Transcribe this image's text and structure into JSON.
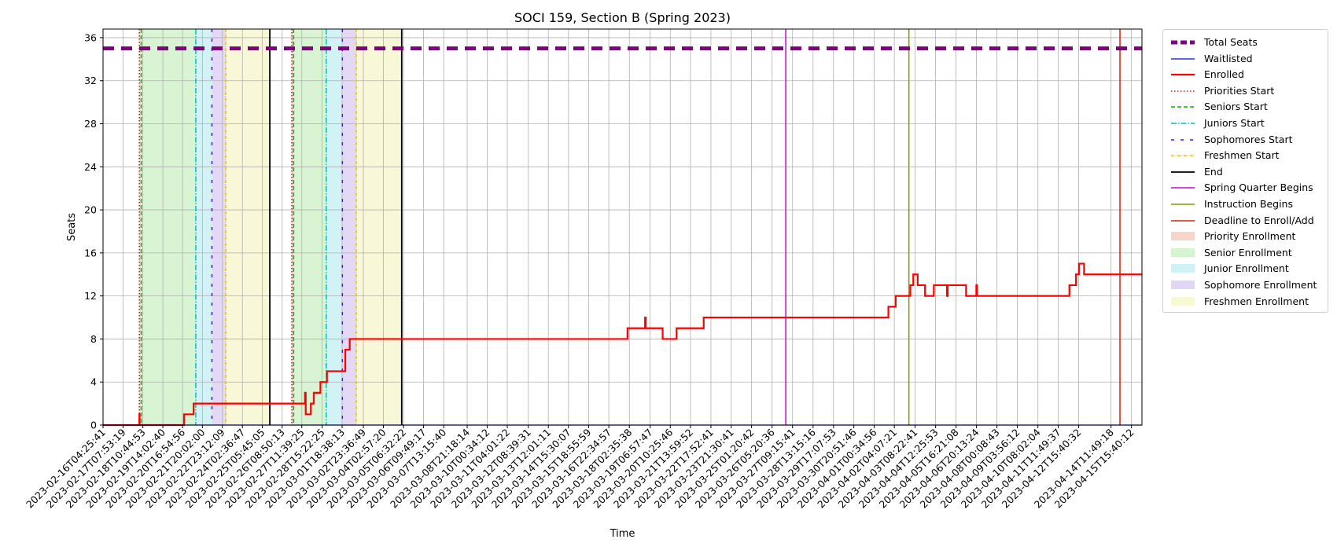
{
  "chart_data": {
    "type": "line",
    "title": "SOCI 159, Section B (Spring 2023)",
    "xlabel": "Time",
    "ylabel": "Seats",
    "ylim": [
      0,
      36.8
    ],
    "yticks": [
      0,
      4,
      8,
      12,
      16,
      20,
      24,
      28,
      32,
      36
    ],
    "grid": true,
    "legend_position": "outside-right",
    "x_range": [
      "2023-02-16T04:25:41",
      "2023-04-16T06:00:00"
    ],
    "x_tick_labels": [
      "2023-02-16T04:25:41",
      "2023-02-17T07:53:19",
      "2023-02-18T10:44:53",
      "2023-02-19T14:02:40",
      "2023-02-20T16:54:56",
      "2023-02-21T20:02:00",
      "2023-02-22T23:12:09",
      "2023-02-24T02:36:47",
      "2023-02-25T05:45:05",
      "2023-02-26T08:50:13",
      "2023-02-27T11:39:25",
      "2023-02-28T15:22:25",
      "2023-03-01T18:38:13",
      "2023-03-02T23:36:49",
      "2023-03-04T02:57:20",
      "2023-03-05T06:32:22",
      "2023-03-06T09:49:17",
      "2023-03-07T13:15:40",
      "2023-03-08T21:18:14",
      "2023-03-10T00:34:12",
      "2023-03-11T04:01:22",
      "2023-03-12T08:39:31",
      "2023-03-13T12:01:11",
      "2023-03-14T15:30:07",
      "2023-03-15T18:55:59",
      "2023-03-16T22:34:57",
      "2023-03-18T02:35:38",
      "2023-03-19T06:57:47",
      "2023-03-20T10:25:46",
      "2023-03-21T13:59:52",
      "2023-03-22T17:52:41",
      "2023-03-23T21:30:41",
      "2023-03-25T01:20:42",
      "2023-03-26T05:20:36",
      "2023-03-27T09:15:41",
      "2023-03-28T13:15:16",
      "2023-03-29T17:07:53",
      "2023-03-30T20:51:46",
      "2023-04-01T00:34:56",
      "2023-04-02T04:07:21",
      "2023-04-03T08:22:41",
      "2023-04-04T12:25:53",
      "2023-04-05T16:21:08",
      "2023-04-06T20:13:24",
      "2023-04-08T00:08:43",
      "2023-04-09T03:56:12",
      "2023-04-10T08:02:04",
      "2023-04-11T11:49:37",
      "2023-04-12T15:40:32",
      "2023-04-14T11:49:18",
      "2023-04-15T15:40:12"
    ],
    "colors": {
      "total": "#800080",
      "waitlisted": "#0000ff",
      "enrolled": "#ff0000",
      "priorities": "#ff0000",
      "seniors": "#00bb00",
      "juniors": "#00bfbf",
      "sophomores": "#6a00d8",
      "freshmen": "#e6c800",
      "end": "#000000",
      "quarter": "#d800d8",
      "instruction": "#7aa000",
      "deadline": "#d82000",
      "priority_fill": "#f4c7bb",
      "senior_fill": "#c9f0c0",
      "junior_fill": "#bdeef2",
      "sophomore_fill": "#d8c8f4",
      "freshmen_fill": "#f5f5c7"
    },
    "total_seats": 35,
    "enrollment_periods": [
      {
        "priority_start": "2023-02-18T06:00:00",
        "senior_start": "2023-02-18T08:30:00",
        "junior_start": "2023-02-21T11:00:00",
        "sophomore_start": "2023-02-22T09:00:00",
        "freshmen_start": "2023-02-23T04:00:00",
        "end": "2023-02-25T16:00:00"
      },
      {
        "priority_start": "2023-02-26T22:00:00",
        "senior_start": "2023-02-27T00:30:00",
        "junior_start": "2023-02-28T21:00:00",
        "sophomore_start": "2023-03-01T19:00:00",
        "freshmen_start": "2023-03-02T14:00:00",
        "end": "2023-03-05T04:00:00"
      }
    ],
    "events": [
      {
        "name": "Spring Quarter Begins",
        "x": "2023-03-27T00:00:00"
      },
      {
        "name": "Instruction Begins",
        "x": "2023-04-03T00:00:00"
      },
      {
        "name": "Deadline to Enroll/Add",
        "x": "2023-04-14T23:59:00"
      }
    ],
    "series": [
      {
        "name": "Enrolled",
        "points": [
          [
            "2023-02-16T04:25:41",
            0
          ],
          [
            "2023-02-18T06:00:00",
            0
          ],
          [
            "2023-02-18T06:00:00",
            1
          ],
          [
            "2023-02-18T06:20:00",
            1
          ],
          [
            "2023-02-18T06:20:00",
            0
          ],
          [
            "2023-02-20T19:00:00",
            0
          ],
          [
            "2023-02-20T19:00:00",
            1
          ],
          [
            "2023-02-21T08:00:00",
            1
          ],
          [
            "2023-02-21T08:00:00",
            2
          ],
          [
            "2023-02-27T16:00:00",
            2
          ],
          [
            "2023-02-27T16:00:00",
            3
          ],
          [
            "2023-02-27T17:00:00",
            3
          ],
          [
            "2023-02-27T17:00:00",
            1
          ],
          [
            "2023-02-28T00:00:00",
            1
          ],
          [
            "2023-02-28T00:00:00",
            2
          ],
          [
            "2023-02-28T04:00:00",
            2
          ],
          [
            "2023-02-28T04:00:00",
            3
          ],
          [
            "2023-02-28T13:00:00",
            3
          ],
          [
            "2023-02-28T13:00:00",
            4
          ],
          [
            "2023-02-28T22:00:00",
            4
          ],
          [
            "2023-02-28T22:00:00",
            5
          ],
          [
            "2023-03-01T23:00:00",
            5
          ],
          [
            "2023-03-01T23:00:00",
            7
          ],
          [
            "2023-03-02T05:00:00",
            7
          ],
          [
            "2023-03-02T05:00:00",
            8
          ],
          [
            "2023-03-18T00:00:00",
            8
          ],
          [
            "2023-03-18T00:00:00",
            9
          ],
          [
            "2023-03-19T00:00:00",
            9
          ],
          [
            "2023-03-19T00:00:00",
            10
          ],
          [
            "2023-03-19T01:00:00",
            10
          ],
          [
            "2023-03-19T01:00:00",
            9
          ],
          [
            "2023-03-20T00:00:00",
            9
          ],
          [
            "2023-03-20T00:00:00",
            8
          ],
          [
            "2023-03-20T19:00:00",
            8
          ],
          [
            "2023-03-20T19:00:00",
            9
          ],
          [
            "2023-03-22T08:00:00",
            9
          ],
          [
            "2023-03-22T08:00:00",
            10
          ],
          [
            "2023-04-01T20:00:00",
            10
          ],
          [
            "2023-04-01T20:00:00",
            11
          ],
          [
            "2023-04-02T06:00:00",
            11
          ],
          [
            "2023-04-02T06:00:00",
            12
          ],
          [
            "2023-04-03T02:00:00",
            12
          ],
          [
            "2023-04-03T02:00:00",
            13
          ],
          [
            "2023-04-03T06:00:00",
            13
          ],
          [
            "2023-04-03T06:00:00",
            14
          ],
          [
            "2023-04-03T12:00:00",
            14
          ],
          [
            "2023-04-03T12:00:00",
            13
          ],
          [
            "2023-04-03T22:00:00",
            13
          ],
          [
            "2023-04-03T22:00:00",
            12
          ],
          [
            "2023-04-04T10:00:00",
            12
          ],
          [
            "2023-04-04T10:00:00",
            13
          ],
          [
            "2023-04-05T04:00:00",
            13
          ],
          [
            "2023-04-05T04:00:00",
            12
          ],
          [
            "2023-04-05T05:00:00",
            12
          ],
          [
            "2023-04-05T05:00:00",
            13
          ],
          [
            "2023-04-06T06:00:00",
            13
          ],
          [
            "2023-04-06T06:00:00",
            12
          ],
          [
            "2023-04-06T20:00:00",
            12
          ],
          [
            "2023-04-06T20:00:00",
            13
          ],
          [
            "2023-04-06T21:00:00",
            13
          ],
          [
            "2023-04-06T21:00:00",
            12
          ],
          [
            "2023-04-12T03:00:00",
            12
          ],
          [
            "2023-04-12T03:00:00",
            13
          ],
          [
            "2023-04-12T12:00:00",
            13
          ],
          [
            "2023-04-12T12:00:00",
            14
          ],
          [
            "2023-04-12T16:00:00",
            14
          ],
          [
            "2023-04-12T16:00:00",
            15
          ],
          [
            "2023-04-12T23:00:00",
            15
          ],
          [
            "2023-04-12T23:00:00",
            14
          ],
          [
            "2023-04-16T06:00:00",
            14
          ]
        ]
      },
      {
        "name": "Waitlisted",
        "points": [
          [
            "2023-02-16T04:25:41",
            0
          ],
          [
            "2023-04-16T06:00:00",
            0
          ]
        ]
      }
    ],
    "legend": [
      {
        "label": "Total Seats",
        "kind": "line",
        "color_key": "total",
        "dash": "8,4",
        "width": 5
      },
      {
        "label": "Waitlisted",
        "kind": "line",
        "color_key": "waitlisted",
        "dash": "",
        "width": 1.2
      },
      {
        "label": "Enrolled",
        "kind": "line",
        "color_key": "enrolled",
        "dash": "",
        "width": 2.2
      },
      {
        "label": "Priorities Start",
        "kind": "line",
        "color_key": "priorities",
        "dash": "1.5,2.5",
        "width": 1.5
      },
      {
        "label": "Seniors Start",
        "kind": "line",
        "color_key": "seniors",
        "dash": "5,3",
        "width": 1.5
      },
      {
        "label": "Juniors Start",
        "kind": "line",
        "color_key": "juniors",
        "dash": "7,2,1.5,2",
        "width": 1.5
      },
      {
        "label": "Sophomores Start",
        "kind": "line",
        "color_key": "sophomores",
        "dash": "4,8",
        "width": 1.5
      },
      {
        "label": "Freshmen Start",
        "kind": "line",
        "color_key": "freshmen",
        "dash": "4,1.5,1,1.5",
        "width": 1.5
      },
      {
        "label": "End",
        "kind": "line",
        "color_key": "end",
        "dash": "",
        "width": 1.8
      },
      {
        "label": "Spring Quarter Begins",
        "kind": "line",
        "color_key": "quarter",
        "dash": "",
        "width": 1.5
      },
      {
        "label": "Instruction Begins",
        "kind": "line",
        "color_key": "instruction",
        "dash": "",
        "width": 1.5
      },
      {
        "label": "Deadline to Enroll/Add",
        "kind": "line",
        "color_key": "deadline",
        "dash": "",
        "width": 1.5
      },
      {
        "label": "Priority Enrollment",
        "kind": "patch",
        "color_key": "priority_fill"
      },
      {
        "label": "Senior Enrollment",
        "kind": "patch",
        "color_key": "senior_fill"
      },
      {
        "label": "Junior Enrollment",
        "kind": "patch",
        "color_key": "junior_fill"
      },
      {
        "label": "Sophomore Enrollment",
        "kind": "patch",
        "color_key": "sophomore_fill"
      },
      {
        "label": "Freshmen Enrollment",
        "kind": "patch",
        "color_key": "freshmen_fill"
      }
    ]
  }
}
